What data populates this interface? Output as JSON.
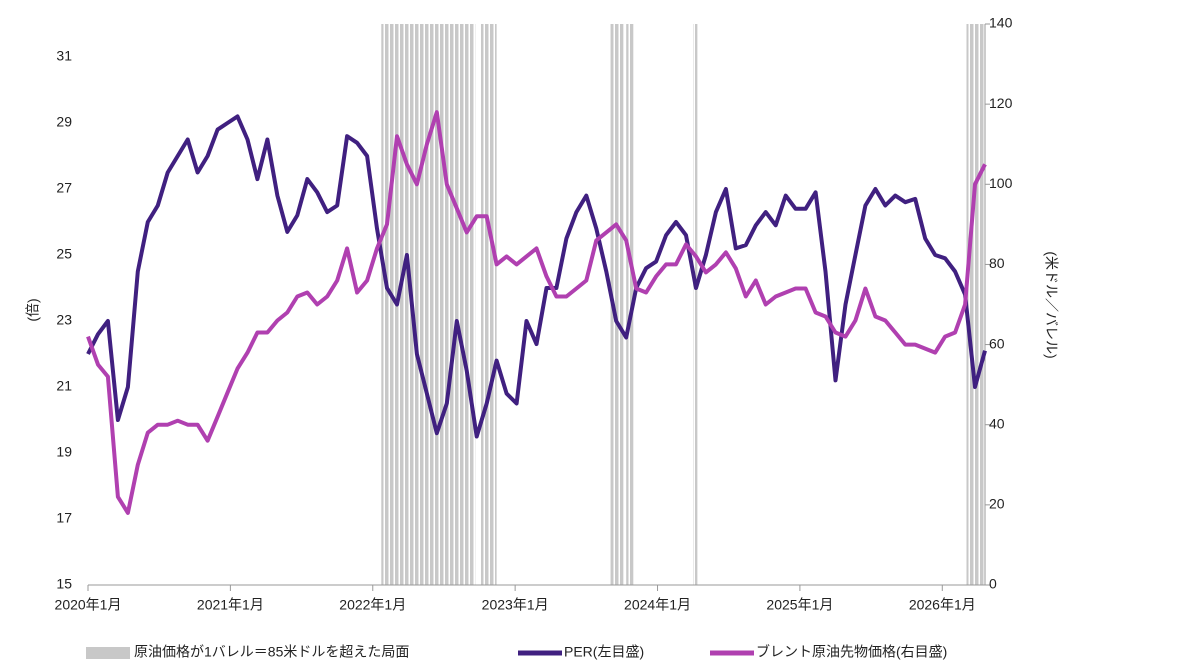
{
  "chart_data": {
    "type": "line",
    "ylabel": "(倍)",
    "y2label": "(米ドル／バレル)",
    "xlim": [
      2020,
      2026.3
    ],
    "xticks": [
      {
        "value": 2020,
        "label": "2020年1月"
      },
      {
        "value": 2021,
        "label": "2021年1月"
      },
      {
        "value": 2022,
        "label": "2022年1月"
      },
      {
        "value": 2023,
        "label": "2023年1月"
      },
      {
        "value": 2024,
        "label": "2024年1月"
      },
      {
        "value": 2025,
        "label": "2025年1月"
      },
      {
        "value": 2026,
        "label": "2026年1月"
      }
    ],
    "ylim": [
      15,
      32
    ],
    "yticks": [
      15,
      17,
      19,
      21,
      23,
      25,
      27,
      29,
      31
    ],
    "y2lim": [
      0,
      140
    ],
    "y2ticks": [
      0,
      20,
      40,
      60,
      80,
      100,
      120,
      140
    ],
    "shaded_label": "原油価格が1バレル＝85米ドルを超えた局面",
    "shaded_color": "#c8c8c8",
    "shaded_ranges": [
      [
        2022.06,
        2022.72
      ],
      [
        2022.76,
        2022.87
      ],
      [
        2023.67,
        2023.76
      ],
      [
        2023.78,
        2023.83
      ],
      [
        2024.25,
        2024.28
      ],
      [
        2026.17,
        2026.3
      ]
    ],
    "x": [
      2020.0,
      2020.07,
      2020.14,
      2020.21,
      2020.28,
      2020.35,
      2020.42,
      2020.49,
      2020.56,
      2020.63,
      2020.7,
      2020.77,
      2020.84,
      2020.91,
      2020.98,
      2021.05,
      2021.12,
      2021.19,
      2021.26,
      2021.33,
      2021.4,
      2021.47,
      2021.54,
      2021.61,
      2021.68,
      2021.75,
      2021.82,
      2021.89,
      2021.96,
      2022.03,
      2022.1,
      2022.17,
      2022.24,
      2022.31,
      2022.38,
      2022.45,
      2022.52,
      2022.59,
      2022.66,
      2022.73,
      2022.8,
      2022.87,
      2022.94,
      2023.01,
      2023.08,
      2023.15,
      2023.22,
      2023.29,
      2023.36,
      2023.43,
      2023.5,
      2023.57,
      2023.64,
      2023.71,
      2023.78,
      2023.85,
      2023.92,
      2023.99,
      2024.06,
      2024.13,
      2024.2,
      2024.27,
      2024.34,
      2024.41,
      2024.48,
      2024.55,
      2024.62,
      2024.69,
      2024.76,
      2024.83,
      2024.9,
      2024.97,
      2025.04,
      2025.11,
      2025.18,
      2025.25,
      2025.32,
      2025.39,
      2025.46,
      2025.53,
      2025.6,
      2025.67,
      2025.74,
      2025.81,
      2025.88,
      2025.95,
      2026.02,
      2026.09,
      2026.16,
      2026.23,
      2026.3
    ],
    "series": [
      {
        "name": "PER(左目盛)",
        "color": "#402080",
        "values": [
          22,
          22.6,
          23,
          20,
          21,
          24.5,
          26,
          26.5,
          27.5,
          28,
          28.5,
          27.5,
          28,
          28.8,
          29,
          29.2,
          28.5,
          27.3,
          28.5,
          26.8,
          25.7,
          26.2,
          27.3,
          26.9,
          26.3,
          26.5,
          28.6,
          28.4,
          28,
          25.8,
          24,
          23.5,
          25,
          22,
          20.8,
          19.6,
          20.5,
          23,
          21.5,
          19.5,
          20.5,
          21.8,
          20.8,
          20.5,
          23,
          22.3,
          24,
          24,
          25.5,
          26.3,
          26.8,
          25.8,
          24.5,
          23,
          22.5,
          24,
          24.6,
          24.8,
          25.6,
          26,
          25.6,
          24,
          25,
          26.3,
          27,
          25.2,
          25.3,
          25.9,
          26.3,
          25.9,
          26.8,
          26.4,
          26.4,
          26.9,
          24.5,
          21.2,
          23.5,
          25,
          26.5,
          27,
          26.5,
          26.8,
          26.6,
          26.7,
          25.5,
          25,
          24.9,
          24.5,
          23.8,
          21,
          22.1
        ]
      },
      {
        "name": "ブレント原油先物価格(右目盛)",
        "color": "#b040b0",
        "axis": "y2",
        "values": [
          62,
          55,
          52,
          22,
          18,
          30,
          38,
          40,
          40,
          41,
          40,
          40,
          36,
          42,
          48,
          54,
          58,
          63,
          63,
          66,
          68,
          72,
          73,
          70,
          72,
          76,
          84,
          73,
          76,
          84,
          90,
          112,
          105,
          100,
          110,
          118,
          100,
          94,
          88,
          92,
          92,
          80,
          82,
          80,
          82,
          84,
          77,
          72,
          72,
          74,
          76,
          86,
          88,
          90,
          86,
          74,
          73,
          77,
          80,
          80,
          85,
          82,
          78,
          80,
          83,
          79,
          72,
          76,
          70,
          72,
          73,
          74,
          74,
          68,
          67,
          63,
          62,
          66,
          74,
          67,
          66,
          63,
          60,
          60,
          59,
          58,
          62,
          63,
          70,
          100,
          105
        ]
      }
    ]
  }
}
